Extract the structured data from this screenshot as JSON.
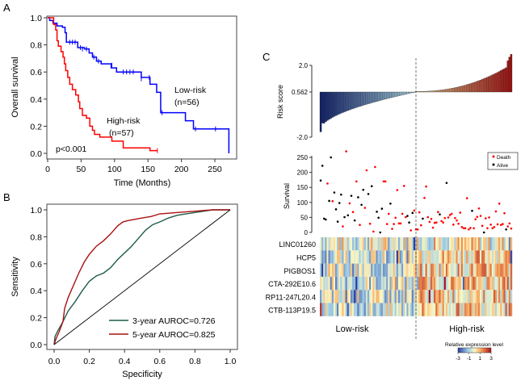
{
  "panels": {
    "a": "A",
    "b": "B",
    "c": "C"
  },
  "chart_data": [
    {
      "id": "km",
      "type": "line",
      "title": "",
      "xlabel": "Time (Months)",
      "ylabel": "Overall survival",
      "xlim": [
        0,
        275
      ],
      "ylim": [
        0,
        1.0
      ],
      "xticks": [
        0,
        50,
        100,
        150,
        200,
        250
      ],
      "yticks": [
        "0.0",
        "0.2",
        "0.4",
        "0.6",
        "0.8",
        "1.0"
      ],
      "annotation": "p<0.001",
      "series": [
        {
          "name": "Low-risk",
          "label": "Low-risk",
          "n_label": "(n=56)",
          "color": "#0000ff",
          "steps": [
            [
              0,
              1.0
            ],
            [
              3,
              0.98
            ],
            [
              8,
              0.96
            ],
            [
              14,
              0.94
            ],
            [
              22,
              0.93
            ],
            [
              26,
              0.89
            ],
            [
              28,
              0.82
            ],
            [
              45,
              0.78
            ],
            [
              55,
              0.77
            ],
            [
              62,
              0.74
            ],
            [
              67,
              0.71
            ],
            [
              73,
              0.68
            ],
            [
              80,
              0.66
            ],
            [
              95,
              0.63
            ],
            [
              103,
              0.6
            ],
            [
              140,
              0.56
            ],
            [
              153,
              0.51
            ],
            [
              163,
              0.45
            ],
            [
              169,
              0.3
            ],
            [
              206,
              0.24
            ],
            [
              218,
              0.18
            ],
            [
              270,
              0.18
            ],
            [
              271,
              0.0
            ]
          ],
          "censored": [
            [
              33,
              0.82
            ],
            [
              37,
              0.82
            ],
            [
              41,
              0.82
            ],
            [
              49,
              0.78
            ],
            [
              52,
              0.77
            ],
            [
              58,
              0.77
            ],
            [
              69,
              0.71
            ],
            [
              76,
              0.68
            ],
            [
              96,
              0.65
            ],
            [
              113,
              0.6
            ],
            [
              118,
              0.6
            ],
            [
              123,
              0.6
            ],
            [
              128,
              0.6
            ],
            [
              140,
              0.55
            ],
            [
              152,
              0.56
            ],
            [
              171,
              0.3
            ],
            [
              221,
              0.18
            ],
            [
              251,
              0.18
            ]
          ]
        },
        {
          "name": "High-risk",
          "label": "High-risk",
          "n_label": "(n=57)",
          "color": "#ff0000",
          "steps": [
            [
              0,
              1.0
            ],
            [
              9,
              0.95
            ],
            [
              12,
              0.91
            ],
            [
              14,
              0.83
            ],
            [
              16,
              0.79
            ],
            [
              20,
              0.75
            ],
            [
              23,
              0.71
            ],
            [
              25,
              0.66
            ],
            [
              27,
              0.61
            ],
            [
              30,
              0.56
            ],
            [
              33,
              0.51
            ],
            [
              37,
              0.47
            ],
            [
              42,
              0.43
            ],
            [
              46,
              0.38
            ],
            [
              48,
              0.33
            ],
            [
              52,
              0.28
            ],
            [
              58,
              0.26
            ],
            [
              63,
              0.2
            ],
            [
              67,
              0.17
            ],
            [
              70,
              0.14
            ],
            [
              78,
              0.12
            ],
            [
              96,
              0.09
            ],
            [
              113,
              0.04
            ],
            [
              153,
              0.02
            ],
            [
              164,
              0.02
            ]
          ],
          "censored": [
            [
              164,
              0.02
            ]
          ]
        }
      ]
    },
    {
      "id": "roc",
      "type": "line",
      "xlabel": "Specificity",
      "ylabel": "Sensitivity",
      "xlim": [
        0,
        1
      ],
      "ylim": [
        0,
        1
      ],
      "xticks": [
        "0.0",
        "0.2",
        "0.4",
        "0.6",
        "0.8",
        "1.0"
      ],
      "yticks": [
        "0.0",
        "0.2",
        "0.4",
        "0.6",
        "0.8",
        "1.0"
      ],
      "legend_position": "bottom-right",
      "series": [
        {
          "name": "3-year AUROC=0.726",
          "color": "#1f5c4a",
          "x": [
            0,
            0.005,
            0.02,
            0.05,
            0.08,
            0.12,
            0.16,
            0.2,
            0.24,
            0.28,
            0.32,
            0.36,
            0.4,
            0.44,
            0.48,
            0.52,
            0.56,
            0.6,
            0.65,
            0.7,
            0.8,
            0.9,
            1.0
          ],
          "y": [
            0,
            0.06,
            0.1,
            0.17,
            0.25,
            0.32,
            0.4,
            0.47,
            0.51,
            0.53,
            0.57,
            0.63,
            0.68,
            0.73,
            0.79,
            0.85,
            0.89,
            0.91,
            0.94,
            0.96,
            0.98,
            1.0,
            1.0
          ]
        },
        {
          "name": "5-year AUROC=0.825",
          "color": "#aa1111",
          "x": [
            0,
            0.01,
            0.03,
            0.05,
            0.06,
            0.08,
            0.11,
            0.14,
            0.17,
            0.2,
            0.24,
            0.28,
            0.32,
            0.36,
            0.39,
            0.42,
            0.46,
            0.5,
            0.55,
            0.6,
            0.7,
            0.8,
            0.9,
            1.0
          ],
          "y": [
            0,
            0.04,
            0.1,
            0.17,
            0.27,
            0.35,
            0.44,
            0.53,
            0.61,
            0.67,
            0.73,
            0.77,
            0.82,
            0.88,
            0.91,
            0.92,
            0.93,
            0.94,
            0.95,
            0.97,
            0.98,
            0.99,
            1.0,
            1.0
          ]
        },
        {
          "name": "reference",
          "color": "#000000",
          "x": [
            0,
            1
          ],
          "y": [
            0,
            1
          ]
        }
      ]
    },
    {
      "id": "risk",
      "type": "bar",
      "ylabel": "Risk score",
      "yticks": [
        "-2.0",
        "0.562",
        "2.0"
      ],
      "cutoff": 0.562,
      "ylim": [
        -2.0,
        2.6
      ],
      "n_low": 56,
      "n_high": 57,
      "low_color_start": "#0f1f6b",
      "low_color_end": "#a9d5e0",
      "high_color_start": "#dcc98a",
      "high_color_end": "#a01010"
    },
    {
      "id": "survival",
      "type": "scatter",
      "ylabel": "Survival",
      "yticks": [
        "0",
        "50",
        "100",
        "150",
        "200",
        "250"
      ],
      "ylim": [
        0,
        270
      ],
      "legend": [
        {
          "label": "Death",
          "color": "#ff0000"
        },
        {
          "label": "Alive",
          "color": "#000000"
        }
      ],
      "legend_position": "top-right",
      "points": [
        [
          173,
          0
        ],
        [
          222,
          0
        ],
        [
          46,
          0
        ],
        [
          43,
          0
        ],
        [
          163,
          1
        ],
        [
          105,
          0
        ],
        [
          250,
          0
        ],
        [
          104,
          1
        ],
        [
          133,
          0
        ],
        [
          77,
          0
        ],
        [
          36,
          0
        ],
        [
          98,
          0
        ],
        [
          126,
          0
        ],
        [
          20,
          1
        ],
        [
          51,
          0
        ],
        [
          270,
          1
        ],
        [
          57,
          0
        ],
        [
          97,
          1
        ],
        [
          122,
          0
        ],
        [
          68,
          1
        ],
        [
          40,
          0
        ],
        [
          170,
          1
        ],
        [
          117,
          0
        ],
        [
          25,
          1
        ],
        [
          92,
          0
        ],
        [
          142,
          0
        ],
        [
          82,
          1
        ],
        [
          207,
          1
        ],
        [
          128,
          0
        ],
        [
          29,
          1
        ],
        [
          154,
          0
        ],
        [
          3,
          1
        ],
        [
          218,
          1
        ],
        [
          69,
          0
        ],
        [
          49,
          0
        ],
        [
          0,
          0
        ],
        [
          79,
          0
        ],
        [
          170,
          1
        ],
        [
          170,
          1
        ],
        [
          28,
          1
        ],
        [
          62,
          1
        ],
        [
          96,
          0
        ],
        [
          12,
          1
        ],
        [
          28,
          1
        ],
        [
          49,
          1
        ],
        [
          141,
          1
        ],
        [
          30,
          1
        ],
        [
          30,
          1
        ],
        [
          62,
          1
        ],
        [
          155,
          1
        ],
        [
          51,
          1
        ],
        [
          55,
          0
        ],
        [
          33,
          0
        ],
        [
          7,
          1
        ],
        [
          65,
          0
        ],
        [
          73,
          1
        ],
        [
          10,
          1
        ],
        [
          10,
          1
        ],
        [
          67,
          1
        ],
        [
          24,
          1
        ],
        [
          46,
          0
        ],
        [
          115,
          1
        ],
        [
          153,
          1
        ],
        [
          51,
          1
        ],
        [
          35,
          1
        ],
        [
          45,
          1
        ],
        [
          16,
          1
        ],
        [
          32,
          1
        ],
        [
          33,
          1
        ],
        [
          68,
          1
        ],
        [
          60,
          0
        ],
        [
          38,
          1
        ],
        [
          33,
          1
        ],
        [
          48,
          1
        ],
        [
          165,
          0
        ],
        [
          50,
          1
        ],
        [
          58,
          1
        ],
        [
          62,
          1
        ],
        [
          26,
          1
        ],
        [
          48,
          1
        ],
        [
          40,
          1
        ],
        [
          29,
          1
        ],
        [
          66,
          1
        ],
        [
          18,
          1
        ],
        [
          14,
          1
        ],
        [
          14,
          1
        ],
        [
          114,
          1
        ],
        [
          10,
          1
        ],
        [
          15,
          1
        ],
        [
          72,
          0
        ],
        [
          14,
          1
        ],
        [
          44,
          1
        ],
        [
          52,
          1
        ],
        [
          80,
          1
        ],
        [
          55,
          1
        ],
        [
          22,
          1
        ],
        [
          0,
          0
        ],
        [
          47,
          1
        ],
        [
          14,
          1
        ],
        [
          50,
          1
        ],
        [
          26,
          1
        ],
        [
          14,
          1
        ],
        [
          18,
          1
        ],
        [
          70,
          1
        ],
        [
          27,
          1
        ],
        [
          96,
          1
        ],
        [
          25,
          1
        ],
        [
          28,
          1
        ],
        [
          64,
          1
        ],
        [
          10,
          0
        ],
        [
          20,
          1
        ],
        [
          30,
          1
        ],
        [
          13,
          1
        ]
      ]
    },
    {
      "id": "heatmap",
      "type": "heatmap",
      "rows": [
        "LINC01260",
        "HCP5",
        "PIGBOS1",
        "CTA-292E10.6",
        "RP11-247L20.4",
        "CTB-113P19.5"
      ],
      "group_labels": [
        "Low-risk",
        "High-risk"
      ],
      "colorbar": {
        "title": "Relative expression level",
        "ticks": [
          "-3",
          "-1",
          "1",
          "3"
        ],
        "min": -3,
        "max": 3
      }
    }
  ]
}
